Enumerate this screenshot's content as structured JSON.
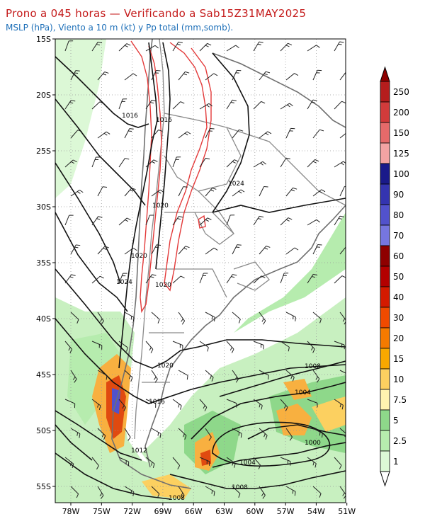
{
  "title": "Prono a 045 horas — Verificando a Sab15Z31MAY2025",
  "subtitle": "MSLP (hPa), Viento a 10 m (kt) y Pp total (mm,somb).",
  "map": {
    "lat_labels": [
      "15S",
      "20S",
      "25S",
      "30S",
      "35S",
      "40S",
      "45S",
      "50S",
      "55S"
    ],
    "lon_labels": [
      "78W",
      "75W",
      "72W",
      "69W",
      "66W",
      "63W",
      "60W",
      "57W",
      "54W",
      "51W"
    ],
    "isobar_labels": [
      {
        "text": "1016"
      },
      {
        "text": "1016"
      },
      {
        "text": "1024"
      },
      {
        "text": "1020"
      },
      {
        "text": "1020"
      },
      {
        "text": "1024"
      },
      {
        "text": "1020"
      },
      {
        "text": "1020"
      },
      {
        "text": "1016"
      },
      {
        "text": "1008"
      },
      {
        "text": "1004"
      },
      {
        "text": "1000"
      },
      {
        "text": "1012"
      },
      {
        "text": "1004"
      },
      {
        "text": "1008"
      },
      {
        "text": "1008"
      }
    ]
  },
  "colorbar": {
    "labels": [
      "250",
      "200",
      "150",
      "125",
      "100",
      "90",
      "80",
      "70",
      "60",
      "50",
      "40",
      "30",
      "20",
      "15",
      "10",
      "7.5",
      "5",
      "2.5",
      "1"
    ],
    "colors": [
      "#b51d1d",
      "#d23b3b",
      "#e56a6a",
      "#f3a3a3",
      "#1a1a8a",
      "#3434b0",
      "#5252cc",
      "#7676df",
      "#8e0000",
      "#b30000",
      "#d41a00",
      "#f04a00",
      "#f57a00",
      "#f8a800",
      "#fcd060",
      "#fff3b0",
      "#8ed88a",
      "#b6ecae",
      "#dcf8d6"
    ]
  },
  "colors": {
    "title": "#c41a1a",
    "subtitle": "#1d6fb8",
    "isobar": "#111111",
    "red_contour": "#e33a3a",
    "border": "#8a8a8a",
    "coast": "#707070"
  }
}
